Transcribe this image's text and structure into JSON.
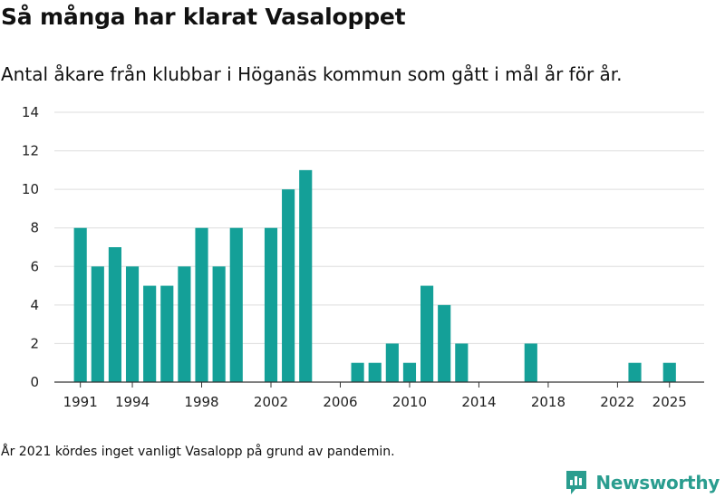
{
  "title": "Så många har klarat Vasaloppet",
  "subtitle": "Antal åkare från klubbar i Höganäs kommun som gått i mål år för år.",
  "note": "År 2021 kördes inget vanligt Vasalopp på grund av pandemin.",
  "brand": {
    "name": "Newsworthy",
    "color": "#2a9d8f",
    "icon": "newsworthy-logo-icon"
  },
  "chart_data": {
    "type": "bar",
    "title": "Så många har klarat Vasaloppet",
    "xlabel": "",
    "ylabel": "",
    "bar_color": "#14a098",
    "grid": true,
    "ylim": [
      0,
      14
    ],
    "xlim": [
      1989.5,
      2027
    ],
    "y_ticks": [
      0,
      2,
      4,
      6,
      8,
      10,
      12,
      14
    ],
    "x_ticks": [
      1991,
      1994,
      1998,
      2002,
      2006,
      2010,
      2014,
      2018,
      2022,
      2025
    ],
    "x": [
      1991,
      1992,
      1993,
      1994,
      1995,
      1996,
      1997,
      1998,
      1999,
      2000,
      2002,
      2003,
      2004,
      2007,
      2008,
      2009,
      2010,
      2011,
      2012,
      2013,
      2017,
      2023,
      2025
    ],
    "values": [
      8,
      6,
      7,
      6,
      5,
      5,
      6,
      8,
      6,
      8,
      8,
      10,
      11,
      1,
      1,
      2,
      1,
      5,
      4,
      2,
      2,
      1,
      1
    ]
  }
}
